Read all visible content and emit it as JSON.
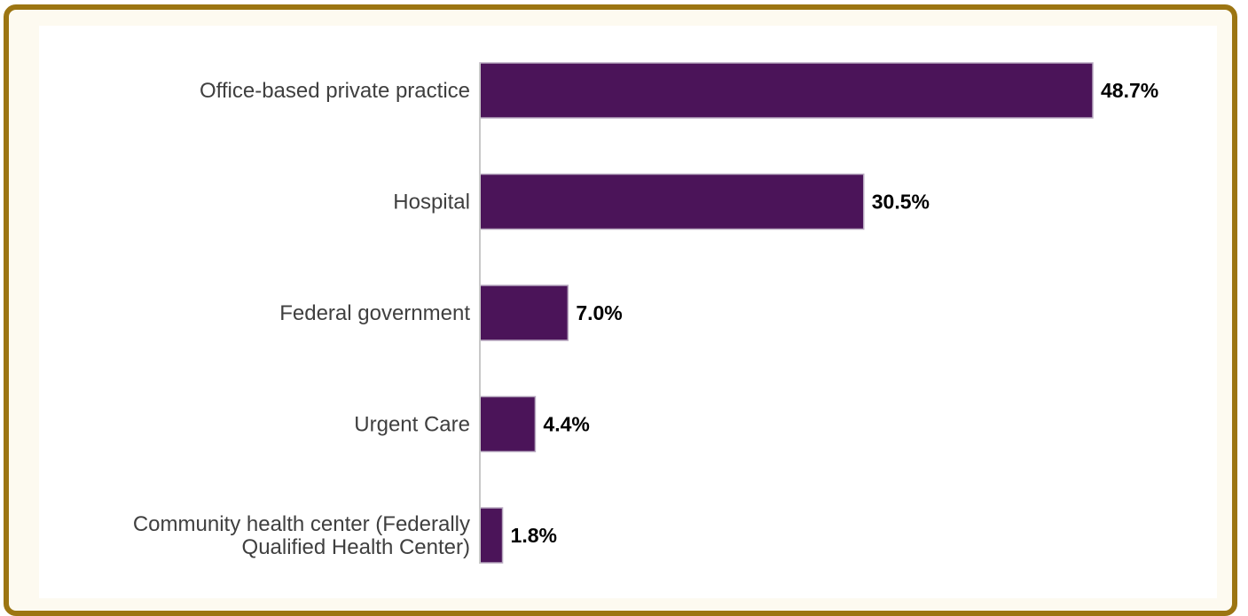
{
  "chart_data": {
    "type": "bar",
    "orientation": "horizontal",
    "categories": [
      [
        "Office-based private practice"
      ],
      [
        "Hospital"
      ],
      [
        "Federal government"
      ],
      [
        "Urgent Care"
      ],
      [
        "Community health center (Federally",
        "Qualified Health Center)"
      ]
    ],
    "values": [
      48.7,
      30.5,
      7.0,
      4.4,
      1.8
    ],
    "value_labels": [
      "48.7%",
      "30.5%",
      "7.0%",
      "4.4%",
      "1.8%"
    ],
    "xlim": [
      0,
      48.7
    ],
    "grid": false,
    "legend": "none",
    "colors": {
      "bar": "#4b1459",
      "bar_edge": "#b8a9c0",
      "axis": "#c8c8c8",
      "frame_border": "#9c7512",
      "frame_background": "#fdfaf0"
    }
  }
}
